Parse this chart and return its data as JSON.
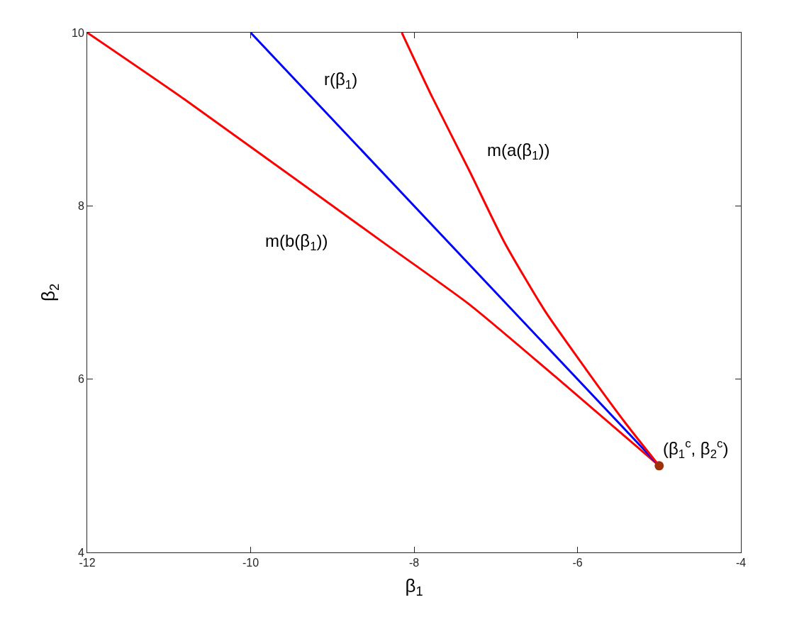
{
  "chart_data": {
    "type": "line",
    "xlabel": "β$_{1}$",
    "ylabel": "β$_{2}$",
    "xlim": [
      -12,
      -4
    ],
    "ylim": [
      4,
      10
    ],
    "xticks": [
      -12,
      -10,
      -8,
      -6,
      -4
    ],
    "yticks": [
      4,
      6,
      8,
      10
    ],
    "grid": false,
    "legend": false,
    "line_style": "solid",
    "series": [
      {
        "name": "m(b(β$_{1}$))",
        "color": "#ff0000",
        "x": [
          -12,
          -10.81,
          -8.38,
          -7.32,
          -6.26,
          -5
        ],
        "values": [
          10,
          9.23,
          7.58,
          6.86,
          6.02,
          5
        ]
      },
      {
        "name": "r(β$_{1}$)",
        "color": "#0000ff",
        "x": [
          -10,
          -5
        ],
        "values": [
          10,
          5
        ]
      },
      {
        "name": "m(a(β$_{1}$))",
        "color": "#ff0000",
        "x": [
          -8.15,
          -7.78,
          -7.32,
          -6.9,
          -6.4,
          -5.9,
          -5.41,
          -5
        ],
        "values": [
          10,
          9.26,
          8.4,
          7.59,
          6.79,
          6.12,
          5.49,
          5
        ]
      },
      {
        "name": "(β$_{1}$$^{c}$, β$_{2}$$^{c}$)",
        "type": "scatter",
        "marker": "circle",
        "color": "#a0300a",
        "x": [
          -5
        ],
        "values": [
          5
        ]
      }
    ]
  }
}
